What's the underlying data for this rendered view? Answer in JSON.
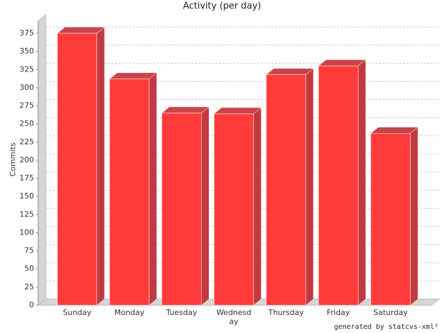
{
  "chart_data": {
    "type": "bar3d",
    "title": "Activity (per day)",
    "y_label": "Commits",
    "categories": [
      "Sunday",
      "Monday",
      "Tuesday",
      "Wednesday",
      "Thursday",
      "Friday",
      "Saturday"
    ],
    "values": [
      375,
      312,
      265,
      264,
      318,
      330,
      237
    ],
    "color": "#ff3b3b",
    "ylim": [
      0,
      392
    ],
    "yticks": [
      0,
      25,
      50,
      75,
      100,
      125,
      150,
      175,
      200,
      225,
      250,
      275,
      300,
      325,
      350,
      375
    ],
    "grid": true,
    "footer": "generated by statcvs-xml²"
  }
}
